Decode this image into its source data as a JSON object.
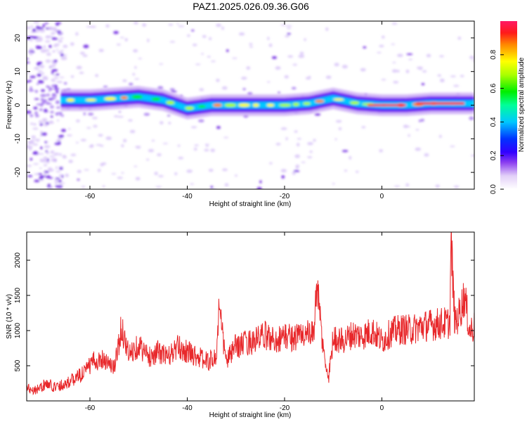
{
  "title": "PAZ1.2025.026.09.36.G06",
  "chart_data": [
    {
      "type": "heatmap",
      "xlabel": "Height of straight line (km)",
      "ylabel": "Frequency (Hz)",
      "xlim": [
        -73,
        19
      ],
      "ylim": [
        -25,
        25
      ],
      "xticks": [
        -60,
        -40,
        -20,
        0
      ],
      "yticks": [
        20,
        10,
        0,
        -10,
        -20
      ],
      "colorbar": {
        "label": "Normalized spectral amplitude",
        "range": [
          0,
          1
        ],
        "ticks": [
          0.0,
          0.2,
          0.4,
          0.6,
          0.8
        ]
      },
      "ridge": {
        "x": [
          -66,
          -60,
          -55,
          -50,
          -45,
          -40,
          -35,
          -30,
          -25,
          -20,
          -15,
          -10,
          -5,
          0,
          5,
          10,
          15,
          19
        ],
        "y": [
          1.5,
          1.5,
          2,
          2.5,
          1.5,
          -1,
          0,
          0,
          0,
          0,
          0.5,
          2,
          0.5,
          0,
          0,
          0.5,
          0.5,
          0.5
        ]
      }
    },
    {
      "type": "line",
      "xlabel": "Height of straight line (km)",
      "ylabel": "SNR (10 * v/v)",
      "xlim": [
        -73,
        19
      ],
      "ylim": [
        0,
        2400
      ],
      "xticks": [
        -60,
        -40,
        -20,
        0
      ],
      "yticks": [
        500,
        1000,
        1500,
        2000
      ],
      "color": "#e8282b",
      "series": [
        {
          "x": [
            -73,
            -71,
            -69,
            -67,
            -65,
            -63,
            -61,
            -59,
            -57,
            -55,
            -53.5,
            -52,
            -50,
            -48,
            -46,
            -44,
            -42,
            -40,
            -38,
            -36,
            -34,
            -33.5,
            -32,
            -30,
            -28,
            -26,
            -24,
            -22,
            -20,
            -18,
            -16,
            -14,
            -13.5,
            -12,
            -11,
            -10,
            -8,
            -6,
            -4,
            -2,
            0,
            2,
            4,
            6,
            8,
            10,
            12,
            14,
            14.2,
            15,
            16,
            17,
            18,
            19
          ],
          "y": [
            180,
            160,
            240,
            200,
            250,
            320,
            420,
            580,
            600,
            460,
            1050,
            650,
            800,
            620,
            700,
            620,
            760,
            700,
            640,
            560,
            620,
            1320,
            560,
            780,
            820,
            860,
            930,
            860,
            920,
            900,
            960,
            920,
            1700,
            700,
            300,
            900,
            850,
            950,
            920,
            1000,
            850,
            980,
            1020,
            1010,
            1060,
            1080,
            1100,
            1110,
            2300,
            1100,
            1250,
            1500,
            1000,
            1050
          ]
        }
      ]
    }
  ]
}
